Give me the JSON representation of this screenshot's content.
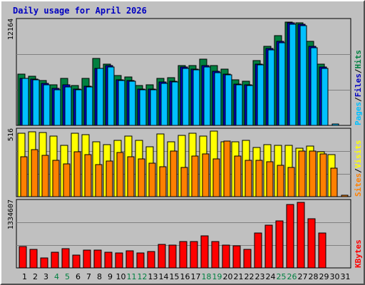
{
  "title": "Daily usage for April 2026",
  "colors": {
    "hits": "#008040",
    "files": "#0000c0",
    "pages": "#00c0ff",
    "visits": "#ffff00",
    "sites": "#ff8000",
    "kbytes": "#ff0000",
    "panel_bg": "#c0c0c0",
    "weekend_label": "#008040",
    "weekday_label": "#000000"
  },
  "chart_data": {
    "type": "bar",
    "x": [
      "1",
      "2",
      "3",
      "4",
      "5",
      "6",
      "7",
      "8",
      "9",
      "10",
      "11",
      "12",
      "13",
      "14",
      "15",
      "16",
      "17",
      "18",
      "19",
      "20",
      "21",
      "22",
      "23",
      "24",
      "25",
      "26",
      "27",
      "28",
      "29",
      "30",
      "31"
    ],
    "weekend_days": [
      "4",
      "5",
      "11",
      "12",
      "18",
      "19",
      "25",
      "26"
    ],
    "panels": [
      {
        "name": "hits-files-pages",
        "ymax_label": "12164",
        "ymax": 12164,
        "legend": [
          {
            "text": "Pages",
            "color": "#00c0ff"
          },
          {
            "text": "/",
            "color": "#000000"
          },
          {
            "text": "Files",
            "color": "#0000c0"
          },
          {
            "text": "/",
            "color": "#000000"
          },
          {
            "text": "Hits",
            "color": "#008040"
          }
        ],
        "series": [
          {
            "name": "Hits",
            "color": "#008040",
            "values": [
              6020,
              5760,
              5220,
              4790,
              5540,
              4630,
              5470,
              7800,
              7180,
              5860,
              5680,
              4630,
              4790,
              5540,
              5590,
              6970,
              7010,
              7740,
              6970,
              6590,
              5330,
              5170,
              7580,
              9220,
              10490,
              12120,
              11980,
              9830,
              7130,
              0,
              0
            ]
          },
          {
            "name": "Files",
            "color": "#0000c0",
            "values": [
              5540,
              5430,
              4900,
              4360,
              4790,
              4250,
              4570,
              6700,
              7020,
              5330,
              5220,
              4250,
              4250,
              5060,
              5170,
              6810,
              6600,
              6970,
              6330,
              6010,
              4840,
              4790,
              7180,
              8960,
              9860,
              12010,
              11810,
              9250,
              6860,
              0,
              0
            ]
          },
          {
            "name": "Pages",
            "color": "#00c0ff",
            "values": [
              5490,
              5330,
              4790,
              4200,
              4520,
              4200,
              4470,
              6650,
              6860,
              5270,
              5170,
              4150,
              4150,
              4900,
              5060,
              6700,
              6490,
              6810,
              6170,
              5950,
              4730,
              4680,
              7080,
              8800,
              9700,
              11860,
              11650,
              9090,
              6700,
              180,
              0
            ]
          }
        ]
      },
      {
        "name": "visits-sites",
        "ymax_label": "516",
        "ymax": 516,
        "legend": [
          {
            "text": "Sites",
            "color": "#ff8000"
          },
          {
            "text": "/",
            "color": "#000000"
          },
          {
            "text": "Visits",
            "color": "#ffff00"
          }
        ],
        "series": [
          {
            "name": "Visits",
            "color": "#ffff00",
            "values": [
              497,
              511,
              506,
              475,
              404,
              497,
              486,
              434,
              409,
              442,
              475,
              444,
              390,
              496,
              431,
              485,
              497,
              475,
              516,
              430,
              431,
              442,
              389,
              409,
              403,
              403,
              379,
              399,
              355,
              333,
              0
            ]
          },
          {
            "name": "Sites",
            "color": "#ff8000",
            "values": [
              314,
              371,
              325,
              285,
              260,
              354,
              333,
              250,
              283,
              345,
              313,
              298,
              266,
              236,
              357,
              231,
              322,
              336,
              295,
              438,
              322,
              287,
              285,
              274,
              246,
              230,
              357,
              358,
              338,
              222,
              9
            ]
          }
        ]
      },
      {
        "name": "kbytes",
        "ymax_label": "1334607",
        "ymax": 1334607,
        "legend": [
          {
            "text": "KBytes",
            "color": "#ff0000"
          }
        ],
        "series": [
          {
            "name": "KBytes",
            "color": "#ff0000",
            "values": [
              441000,
              382000,
              209000,
              320000,
              389000,
              264000,
              363000,
              361000,
              318000,
              305000,
              344000,
              306000,
              338000,
              480000,
              468000,
              531000,
              535000,
              648000,
              537000,
              458000,
              444000,
              383000,
              705000,
              866000,
              961000,
              1294000,
              1334607,
              1005000,
              705000,
              0,
              0
            ]
          }
        ]
      }
    ]
  }
}
